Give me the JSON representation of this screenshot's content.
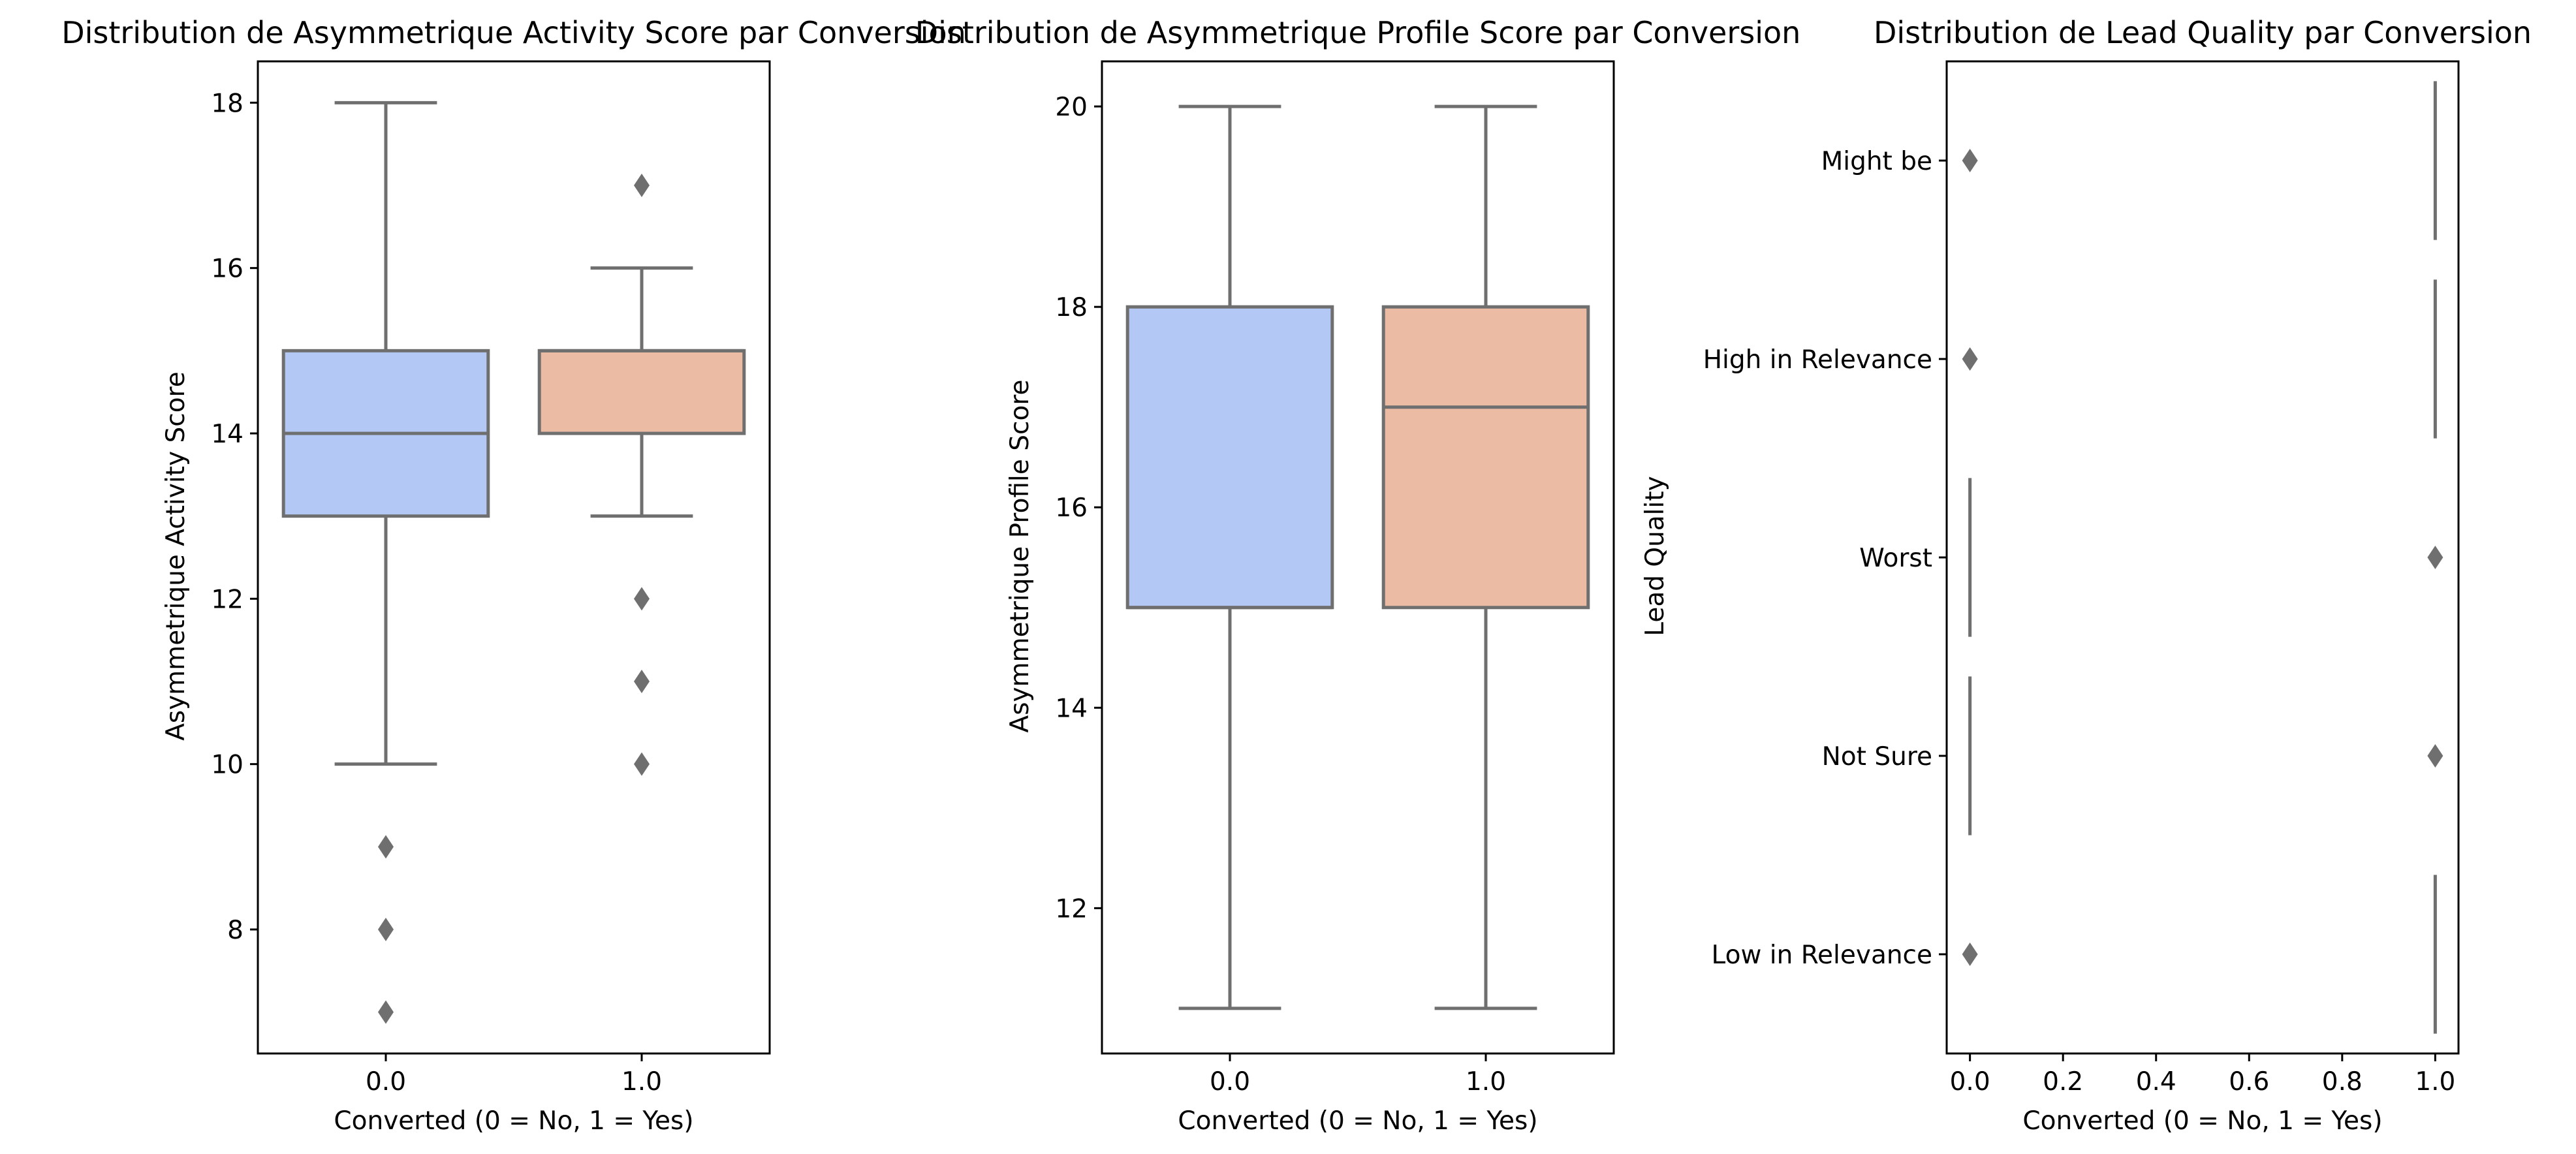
{
  "colors": {
    "box_no": "#b3c8f4",
    "box_yes": "#ecbba4",
    "line": "#6f6f6f"
  },
  "chart_data": [
    {
      "type": "box",
      "title": "Distribution de Asymmetrique Activity Score par Conversion",
      "xlabel": "Converted (0 = No, 1 = Yes)",
      "ylabel": "Asymmetrique Activity Score",
      "categories": [
        "0.0",
        "1.0"
      ],
      "ylim": [
        6.5,
        18.5
      ],
      "yticks": [
        8,
        10,
        12,
        14,
        16,
        18
      ],
      "boxes": [
        {
          "category": "0.0",
          "whisker_low": 10,
          "q1": 13,
          "median": 14,
          "q3": 15,
          "whisker_high": 18,
          "outliers": [
            9,
            8,
            7
          ]
        },
        {
          "category": "1.0",
          "whisker_low": 13,
          "q1": 14,
          "median": 15,
          "q3": 15,
          "whisker_high": 16,
          "outliers": [
            17,
            12,
            11,
            10
          ]
        }
      ]
    },
    {
      "type": "box",
      "title": "Distribution de Asymmetrique Profile Score par Conversion",
      "xlabel": "Converted (0 = No, 1 = Yes)",
      "ylabel": "Asymmetrique Profile Score",
      "categories": [
        "0.0",
        "1.0"
      ],
      "ylim": [
        10.55,
        20.45
      ],
      "yticks": [
        12,
        14,
        16,
        18,
        20
      ],
      "boxes": [
        {
          "category": "0.0",
          "whisker_low": 11,
          "q1": 15,
          "median": 15,
          "q3": 18,
          "whisker_high": 20,
          "outliers": []
        },
        {
          "category": "1.0",
          "whisker_low": 11,
          "q1": 15,
          "median": 17,
          "q3": 18,
          "whisker_high": 20,
          "outliers": []
        }
      ]
    },
    {
      "type": "box-horizontal",
      "title": "Distribution de Lead Quality par Conversion",
      "xlabel": "Converted (0 = No, 1 = Yes)",
      "ylabel": "Lead Quality",
      "categories": [
        "Might be",
        "High in Relevance",
        "Worst",
        "Not Sure",
        "Low in Relevance"
      ],
      "xlim": [
        -0.05,
        1.05
      ],
      "xticks": [
        "0.0",
        "0.2",
        "0.4",
        "0.6",
        "0.8",
        "1.0"
      ],
      "boxes": [
        {
          "category": "Might be",
          "value": 1.0,
          "outliers": [
            0.0
          ]
        },
        {
          "category": "High in Relevance",
          "value": 1.0,
          "outliers": [
            0.0
          ]
        },
        {
          "category": "Worst",
          "value": 0.0,
          "outliers": [
            1.0
          ]
        },
        {
          "category": "Not Sure",
          "value": 0.0,
          "outliers": [
            1.0
          ]
        },
        {
          "category": "Low in Relevance",
          "value": 1.0,
          "outliers": [
            0.0
          ]
        }
      ]
    }
  ]
}
